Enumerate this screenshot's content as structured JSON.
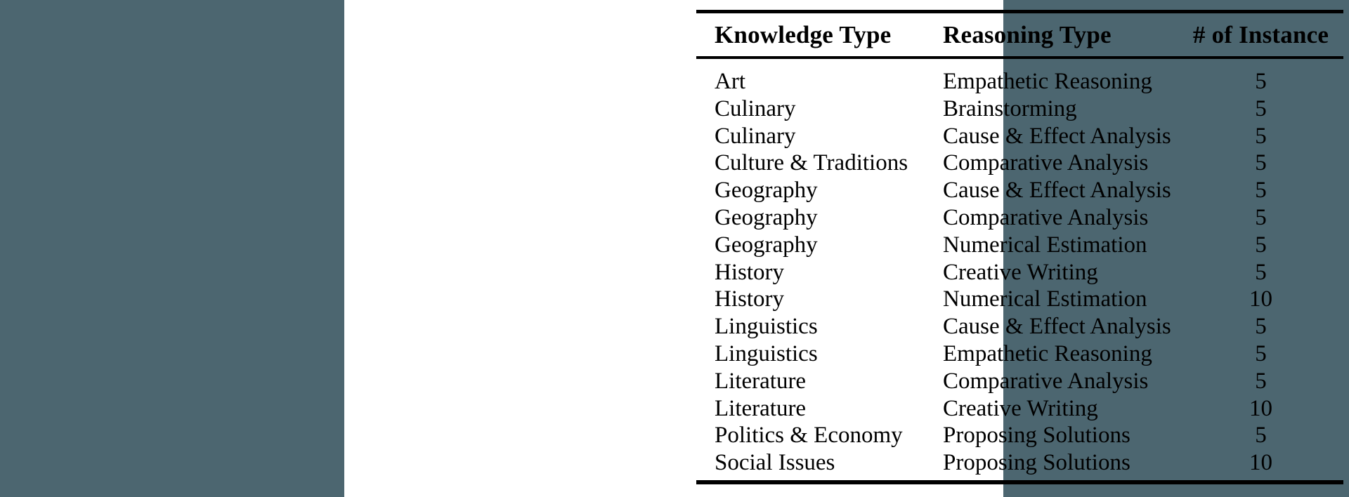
{
  "page": {
    "background_color": "#4c6670",
    "panel_color": "#ffffff",
    "rule_color": "#000000",
    "text_color": "#000000"
  },
  "table": {
    "columns": [
      {
        "key": "knowledge",
        "label": "Knowledge Type",
        "align": "left"
      },
      {
        "key": "reasoning",
        "label": "Reasoning Type",
        "align": "left"
      },
      {
        "key": "count",
        "label": "# of Instance",
        "align": "center"
      }
    ],
    "rows": [
      {
        "knowledge": "Art",
        "reasoning": "Empathetic Reasoning",
        "count": "5"
      },
      {
        "knowledge": "Culinary",
        "reasoning": "Brainstorming",
        "count": "5"
      },
      {
        "knowledge": "Culinary",
        "reasoning": "Cause & Effect Analysis",
        "count": "5"
      },
      {
        "knowledge": "Culture & Traditions",
        "reasoning": "Comparative Analysis",
        "count": "5"
      },
      {
        "knowledge": "Geography",
        "reasoning": "Cause & Effect Analysis",
        "count": "5"
      },
      {
        "knowledge": "Geography",
        "reasoning": "Comparative Analysis",
        "count": "5"
      },
      {
        "knowledge": "Geography",
        "reasoning": "Numerical Estimation",
        "count": "5"
      },
      {
        "knowledge": "History",
        "reasoning": "Creative Writing",
        "count": "5"
      },
      {
        "knowledge": "History",
        "reasoning": "Numerical Estimation",
        "count": "10"
      },
      {
        "knowledge": "Linguistics",
        "reasoning": "Cause & Effect Analysis",
        "count": "5"
      },
      {
        "knowledge": "Linguistics",
        "reasoning": "Empathetic Reasoning",
        "count": "5"
      },
      {
        "knowledge": "Literature",
        "reasoning": "Comparative Analysis",
        "count": "5"
      },
      {
        "knowledge": "Literature",
        "reasoning": "Creative Writing",
        "count": "10"
      },
      {
        "knowledge": "Politics & Economy",
        "reasoning": "Proposing Solutions",
        "count": "5"
      },
      {
        "knowledge": "Social Issues",
        "reasoning": "Proposing Solutions",
        "count": "10"
      }
    ]
  }
}
